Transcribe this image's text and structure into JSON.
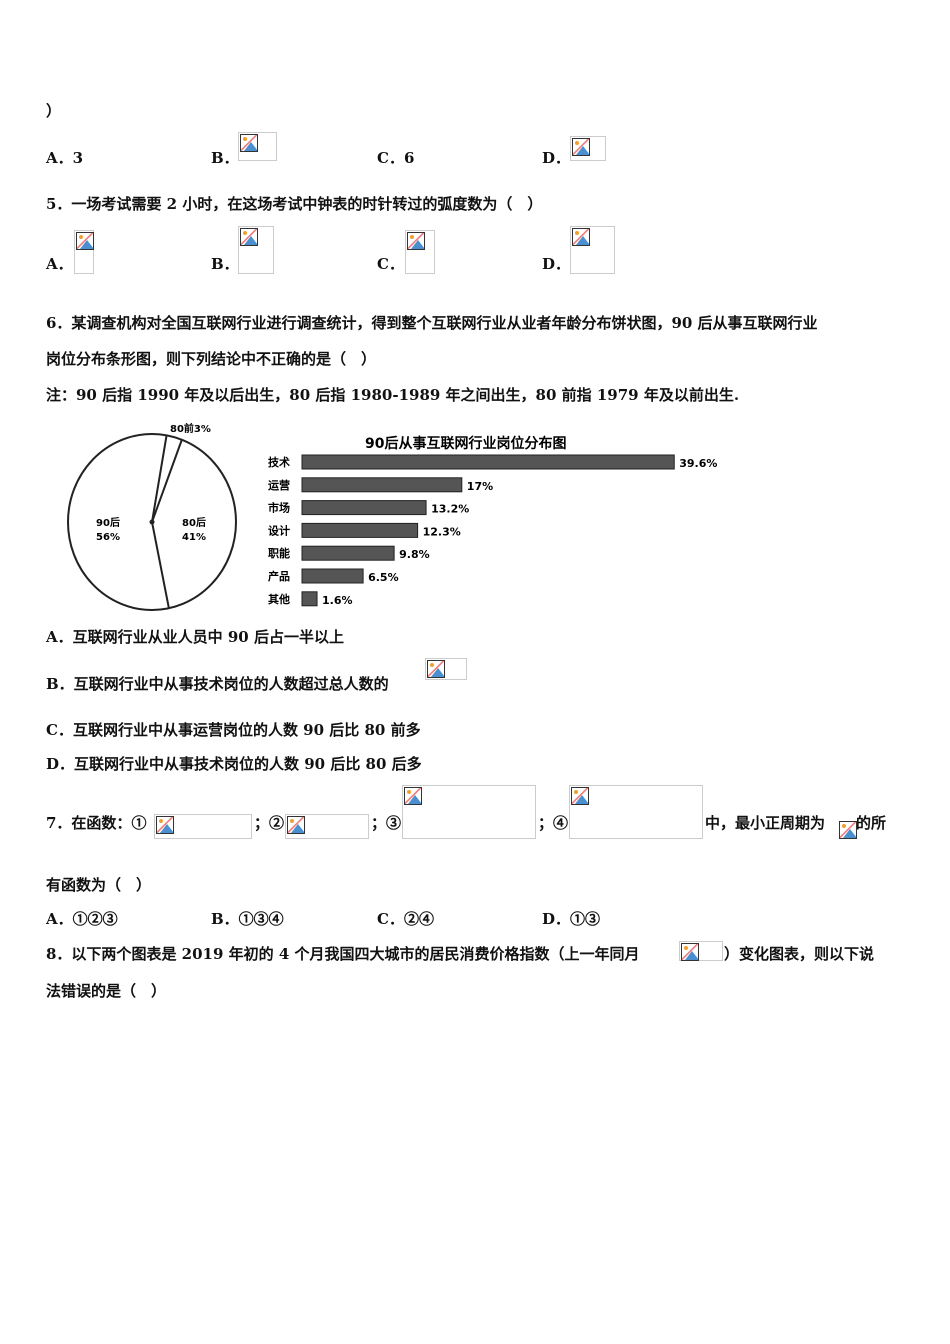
{
  "q4_tail": "）",
  "q4_options": {
    "a": "A．3",
    "b": "B．",
    "c": "C．6",
    "d": "D．"
  },
  "q5": {
    "stem": "5．一场考试需要 2 小时，在这场考试中钟表的时针转过的弧度数为（　）",
    "a": "A．",
    "b": "B．",
    "c": "C．",
    "d": "D．"
  },
  "q6": {
    "stem1": "6．某调查机构对全国互联网行业进行调查统计，得到整个互联网行业从业者年龄分布饼状图，90 后从事互联网行业",
    "stem2": "岗位分布条形图，则下列结论中不正确的是（　）",
    "note": "注：90 后指 1990 年及以后出生，80 后指 1980-1989 年之间出生，80 前指 1979 年及以前出生.",
    "a": "A．互联网行业从业人员中 90 后占一半以上",
    "b": "B．互联网行业中从事技术岗位的人数超过总人数的",
    "c": "C．互联网行业中从事运营岗位的人数 90 后比 80 前多",
    "d": "D．互联网行业中从事技术岗位的人数 90 后比 80 后多"
  },
  "chart_data": [
    {
      "type": "pie",
      "labels": [
        "90后",
        "80后",
        "80前"
      ],
      "values": [
        56,
        41,
        3
      ],
      "value_labels": [
        "56%",
        "41%",
        "3%"
      ]
    },
    {
      "type": "bar",
      "orientation": "horizontal",
      "title": "90后从事互联网行业岗位分布图",
      "categories": [
        "技术",
        "运营",
        "市场",
        "设计",
        "职能",
        "产品",
        "其他"
      ],
      "values": [
        39.6,
        17,
        13.2,
        12.3,
        9.8,
        6.5,
        1.6
      ],
      "value_labels": [
        "39.6%",
        "17%",
        "13.2%",
        "12.3%",
        "9.8%",
        "6.5%",
        "1.6%"
      ],
      "bar_color": "#555555"
    }
  ],
  "q7": {
    "p1": "7．在函数：①",
    "p2": "；②",
    "p3": "；③",
    "p4": "；④",
    "p5": "中，最小正周期为",
    "p6": "的所",
    "line2": "有函数为（　）",
    "a": "A．①②③",
    "b": "B．①③④",
    "c": "C．②④",
    "d": "D．①③"
  },
  "q8": {
    "p1": "8．以下两个图表是 2019 年初的 4 个月我国四大城市的居民消费价格指数（上一年同月",
    "p2": "）变化图表，则以下说",
    "line2": "法错误的是（　）"
  }
}
